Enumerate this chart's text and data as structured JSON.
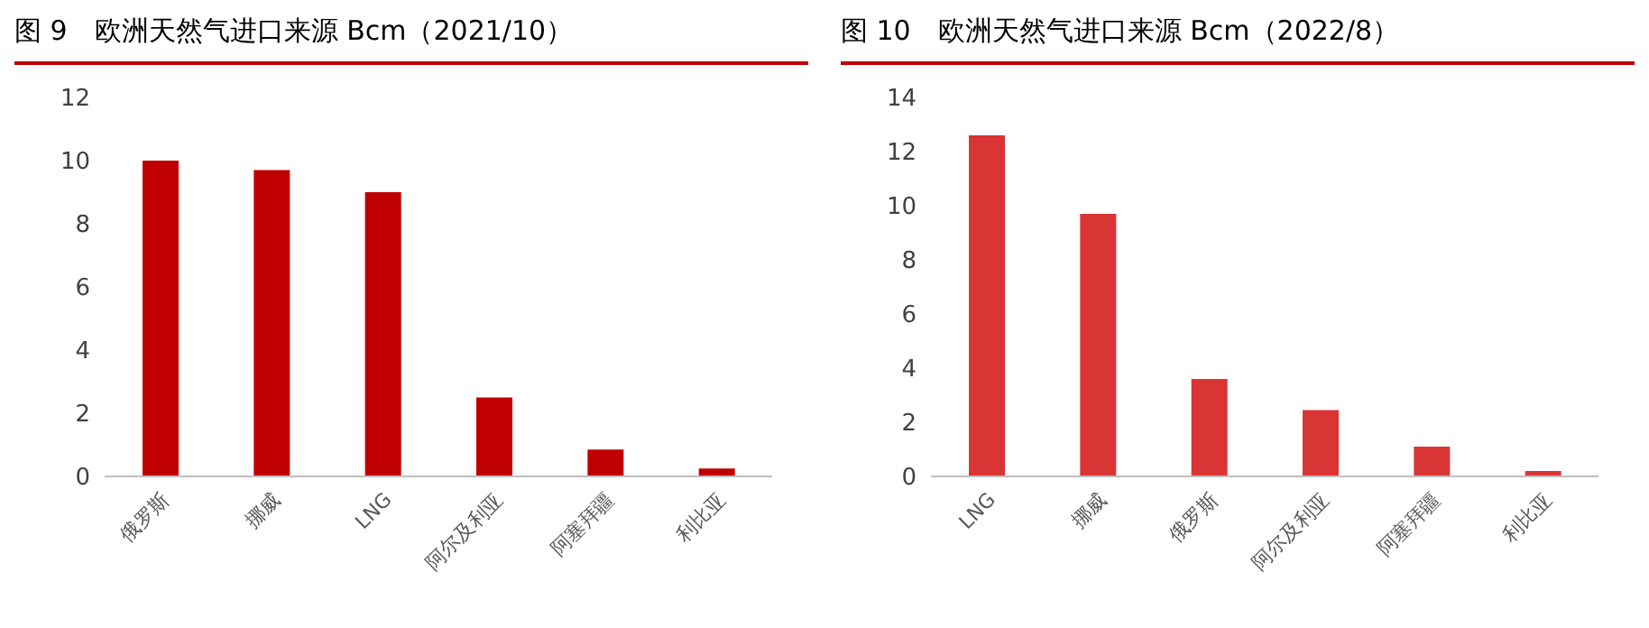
{
  "chart_data": [
    {
      "type": "bar",
      "title": "图 9　欧洲天然气进口来源 Bcm（2021/10）",
      "categories": [
        "俄罗斯",
        "挪威",
        "LNG",
        "阿尔及利亚",
        "阿塞拜疆",
        "利比亚"
      ],
      "values": [
        10.0,
        9.7,
        9.0,
        2.5,
        0.85,
        0.25
      ],
      "color": "#c00000",
      "ylim": [
        0,
        12
      ],
      "yticks": [
        0,
        2,
        4,
        6,
        8,
        10,
        12
      ]
    },
    {
      "type": "bar",
      "title": "图 10　欧洲天然气进口来源 Bcm（2022/8）",
      "categories": [
        "LNG",
        "挪威",
        "俄罗斯",
        "阿尔及利亚",
        "阿塞拜疆",
        "利比亚"
      ],
      "values": [
        12.6,
        9.7,
        3.6,
        2.45,
        1.1,
        0.2
      ],
      "color": "#d93535",
      "ylim": [
        0,
        14
      ],
      "yticks": [
        0,
        2,
        4,
        6,
        8,
        10,
        12,
        14
      ]
    }
  ]
}
